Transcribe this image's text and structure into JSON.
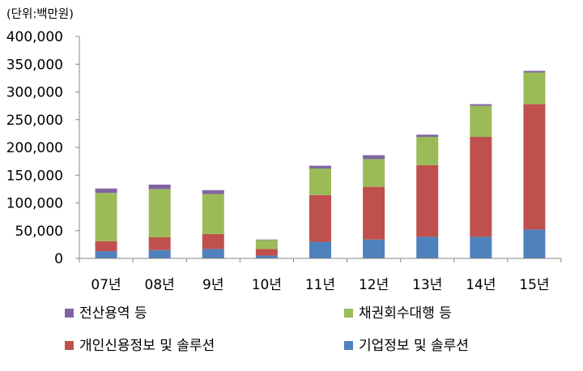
{
  "chart_data": {
    "type": "bar",
    "stacked": true,
    "unit_label": "(단위:백만원)",
    "categories": [
      "07년",
      "08년",
      "9년",
      "10년",
      "11년",
      "12년",
      "13년",
      "14년",
      "15년"
    ],
    "ylim": [
      0,
      400000
    ],
    "yticks": [
      0,
      50000,
      100000,
      150000,
      200000,
      250000,
      300000,
      350000,
      400000
    ],
    "ytick_labels": [
      "0",
      "50,000",
      "100,000",
      "150,000",
      "200,000",
      "250,000",
      "300,000",
      "350,000",
      "400,000"
    ],
    "grid": false,
    "legend_position": "bottom",
    "series": [
      {
        "name": "기업정보 및 솔루션",
        "color": "#4f81bd",
        "values": [
          13000,
          15000,
          17000,
          5000,
          30000,
          34000,
          39000,
          39000,
          52000
        ]
      },
      {
        "name": "개인신용정보 및 솔루션",
        "color": "#c0504d",
        "values": [
          18000,
          23000,
          27000,
          12000,
          84000,
          95000,
          129000,
          180000,
          226000
        ]
      },
      {
        "name": "채권회수대행 등",
        "color": "#9bbb59",
        "values": [
          87000,
          87000,
          72000,
          16000,
          48000,
          50000,
          51000,
          56000,
          57000
        ]
      },
      {
        "name": "전산용역 등",
        "color": "#8064a2",
        "values": [
          8000,
          8000,
          7000,
          1000,
          5000,
          7000,
          4000,
          3000,
          3000
        ]
      }
    ]
  }
}
